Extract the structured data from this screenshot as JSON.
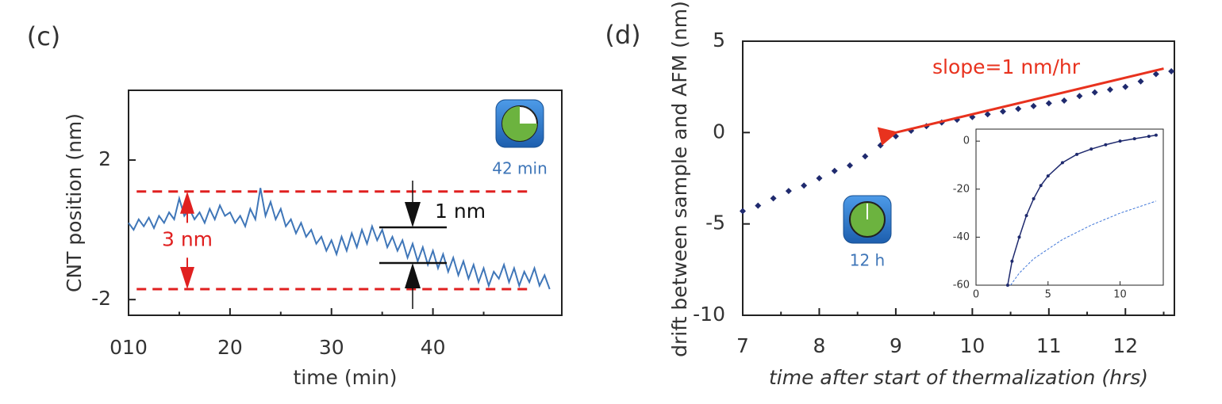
{
  "chart_data": [
    {
      "type": "line",
      "panel": "(c)",
      "xlabel": "time (min)",
      "ylabel": "CNT position (nm)",
      "xlim": [
        10,
        52.7
      ],
      "ylim": [
        -2.45,
        4
      ],
      "xticks": [
        {
          "value": 10,
          "label": "010"
        },
        20,
        30,
        40
      ],
      "minor_xticks": [
        15,
        25,
        35,
        45
      ],
      "yticks": [
        -2,
        2
      ],
      "x": [
        10,
        10.5,
        11,
        11.5,
        12,
        12.5,
        13,
        13.5,
        14,
        14.5,
        15,
        15.5,
        16,
        16.5,
        17,
        17.5,
        18,
        18.5,
        19,
        19.5,
        20,
        20.5,
        21,
        21.5,
        22,
        22.5,
        23,
        23.5,
        24,
        24.5,
        25,
        25.5,
        26,
        26.5,
        27,
        27.5,
        28,
        28.5,
        29,
        29.5,
        30,
        30.5,
        31,
        31.5,
        32,
        32.5,
        33,
        33.5,
        34,
        34.5,
        35,
        35.5,
        36,
        36.5,
        37,
        37.5,
        38,
        38.5,
        39,
        39.5,
        40,
        40.5,
        41,
        41.5,
        42,
        42.5,
        43,
        43.5,
        44,
        44.5,
        45,
        45.5,
        46,
        46.5,
        47,
        47.5,
        48,
        48.5,
        49,
        49.5,
        50,
        50.5,
        51,
        51.5
      ],
      "values": [
        0.2,
        0.0,
        0.3,
        0.1,
        0.35,
        0.05,
        0.4,
        0.2,
        0.5,
        0.3,
        0.9,
        0.4,
        0.6,
        0.3,
        0.5,
        0.2,
        0.6,
        0.3,
        0.7,
        0.4,
        0.5,
        0.2,
        0.4,
        0.1,
        0.6,
        0.3,
        1.2,
        0.4,
        0.8,
        0.3,
        0.6,
        0.1,
        0.3,
        -0.1,
        0.2,
        -0.2,
        0.0,
        -0.4,
        -0.2,
        -0.6,
        -0.3,
        -0.7,
        -0.2,
        -0.6,
        -0.1,
        -0.5,
        0.0,
        -0.4,
        0.1,
        -0.3,
        0.0,
        -0.5,
        -0.2,
        -0.6,
        -0.3,
        -0.8,
        -0.4,
        -0.9,
        -0.5,
        -1.0,
        -0.6,
        -1.1,
        -0.7,
        -1.2,
        -0.8,
        -1.3,
        -0.9,
        -1.4,
        -1.0,
        -1.5,
        -1.1,
        -1.6,
        -1.2,
        -1.4,
        -1.0,
        -1.5,
        -1.1,
        -1.6,
        -1.2,
        -1.5,
        -1.1,
        -1.6,
        -1.3,
        -1.7
      ],
      "color": "#3f76b8",
      "reference_lines": {
        "values": [
          1.1,
          -1.7
        ],
        "color": "#e02020"
      },
      "bracket_lines": [
        0.07,
        -0.95
      ],
      "annotations": [
        "3 nm",
        "1 nm"
      ],
      "clock_label": "42 min"
    },
    {
      "type": "scatter",
      "panel": "(d)",
      "xlabel": "time after start of thermalization (hrs)",
      "ylabel": "drift between sample and AFM (nm)",
      "xlim": [
        7,
        12.64
      ],
      "ylim": [
        -10,
        5
      ],
      "xticks": [
        7,
        8,
        9,
        10,
        11,
        12
      ],
      "minor_xticks": [
        7.5,
        8.5,
        9.5,
        10.5,
        11.5,
        12.5
      ],
      "yticks": [
        -10,
        -5,
        0,
        5
      ],
      "series": [
        {
          "color": "#1f2a6e",
          "x": [
            7,
            7.2,
            7.4,
            7.6,
            7.8,
            8,
            8.2,
            8.4,
            8.6,
            8.8,
            9,
            9.2,
            9.4,
            9.6,
            9.8,
            10,
            10.2,
            10.4,
            10.6,
            10.8,
            11,
            11.2,
            11.4,
            11.6,
            11.8,
            12,
            12.2,
            12.4,
            12.6
          ],
          "values": [
            -4.3,
            -4.0,
            -3.6,
            -3.2,
            -2.9,
            -2.5,
            -2.1,
            -1.8,
            -1.3,
            -0.7,
            -0.2,
            0.1,
            0.35,
            0.55,
            0.7,
            0.85,
            1.0,
            1.15,
            1.3,
            1.45,
            1.6,
            1.75,
            2.0,
            2.2,
            2.35,
            2.5,
            2.8,
            3.2,
            3.35
          ]
        },
        {
          "color": "#e8321e",
          "x": [
            9,
            12.5
          ],
          "values": [
            0,
            3.5
          ]
        }
      ],
      "annotation": "slope=1 nm/hr",
      "clock_label": "12 h",
      "inset": {
        "xlim": [
          0,
          13
        ],
        "ylim": [
          -60,
          5
        ],
        "xticks": [
          0,
          5,
          10
        ],
        "yticks": [
          0,
          -20,
          -40,
          -60
        ],
        "series": [
          {
            "style": "dots",
            "color": "#1f2a6e",
            "x": [
              2.2,
              2.5,
              3,
              3.5,
              4,
              4.5,
              5,
              6,
              7,
              8,
              9,
              10,
              11,
              12,
              12.5
            ],
            "values": [
              -60,
              -50,
              -40,
              -31,
              -24,
              -18.5,
              -14.5,
              -9,
              -5.5,
              -3.3,
              -1.5,
              0,
              1,
              2,
              2.5
            ]
          },
          {
            "style": "dashed",
            "color": "#3f76d8",
            "x": [
              2.4,
              3,
              4,
              5,
              6,
              8,
              10,
              12.5
            ],
            "values": [
              -60,
              -55,
              -49,
              -45,
              -41,
              -35,
              -30,
              -25
            ]
          }
        ]
      }
    }
  ]
}
